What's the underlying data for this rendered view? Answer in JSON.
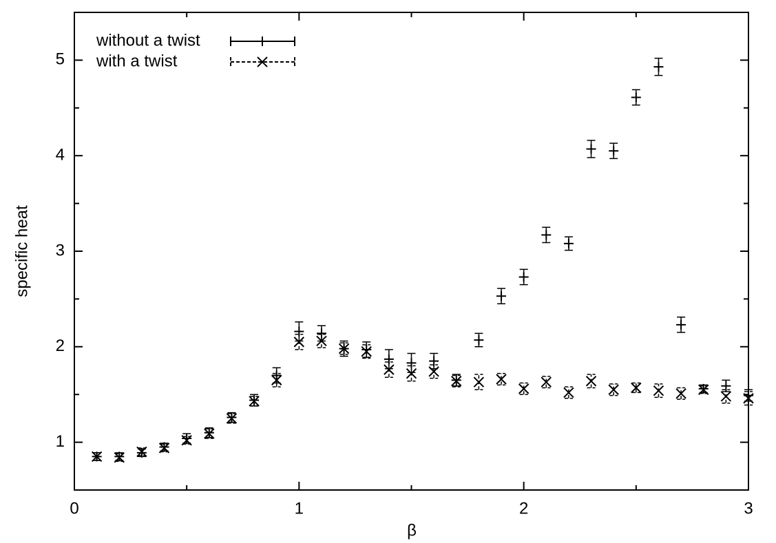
{
  "chart_data": {
    "type": "errorbar",
    "xlabel": "β",
    "ylabel": "specific heat",
    "xlim": [
      0,
      3
    ],
    "xticks": [
      0,
      1,
      2,
      3
    ],
    "xminorticks": [
      0.5,
      1.5,
      2.5
    ],
    "ylim": [
      0.5,
      5.5
    ],
    "yticks": [
      1,
      2,
      3,
      4,
      5
    ],
    "yminorticks": [
      1.5,
      2.5,
      3.5,
      4.5
    ],
    "legend": "upper left",
    "x": [
      0.1,
      0.2,
      0.3,
      0.4,
      0.5,
      0.6,
      0.7,
      0.8,
      0.9,
      1.0,
      1.1,
      1.2,
      1.3,
      1.4,
      1.5,
      1.6,
      1.7,
      1.8,
      1.9,
      2.0,
      2.1,
      2.2,
      2.3,
      2.4,
      2.5,
      2.6,
      2.7,
      2.8,
      2.9,
      3.0
    ],
    "series": [
      {
        "name": "without a twist",
        "color": "#000000",
        "marker": "+",
        "linestyle": "solid",
        "values": [
          0.85,
          0.85,
          0.89,
          0.95,
          1.04,
          1.1,
          1.26,
          1.44,
          1.7,
          2.16,
          2.14,
          1.98,
          1.97,
          1.87,
          1.83,
          1.85,
          1.65,
          2.07,
          2.53,
          2.73,
          3.17,
          3.08,
          4.07,
          4.05,
          4.61,
          4.93,
          2.23,
          1.56,
          1.59,
          1.49
        ],
        "errors": [
          0.04,
          0.04,
          0.04,
          0.04,
          0.05,
          0.05,
          0.05,
          0.06,
          0.08,
          0.1,
          0.08,
          0.08,
          0.08,
          0.1,
          0.1,
          0.08,
          0.06,
          0.07,
          0.08,
          0.08,
          0.08,
          0.07,
          0.09,
          0.08,
          0.08,
          0.09,
          0.08,
          0.04,
          0.06,
          0.06
        ]
      },
      {
        "name": "with a twist",
        "color": "#000000",
        "marker": "x",
        "linestyle": "dashed",
        "values": [
          0.85,
          0.84,
          0.9,
          0.94,
          1.02,
          1.09,
          1.25,
          1.43,
          1.65,
          2.05,
          2.06,
          1.98,
          1.95,
          1.76,
          1.72,
          1.74,
          1.64,
          1.63,
          1.66,
          1.56,
          1.63,
          1.52,
          1.64,
          1.55,
          1.57,
          1.54,
          1.51,
          1.55,
          1.48,
          1.46
        ],
        "errors": [
          0.04,
          0.04,
          0.04,
          0.04,
          0.04,
          0.05,
          0.05,
          0.05,
          0.07,
          0.08,
          0.07,
          0.06,
          0.07,
          0.08,
          0.08,
          0.07,
          0.06,
          0.08,
          0.06,
          0.06,
          0.06,
          0.06,
          0.07,
          0.06,
          0.05,
          0.07,
          0.06,
          0.04,
          0.07,
          0.07
        ]
      }
    ]
  }
}
